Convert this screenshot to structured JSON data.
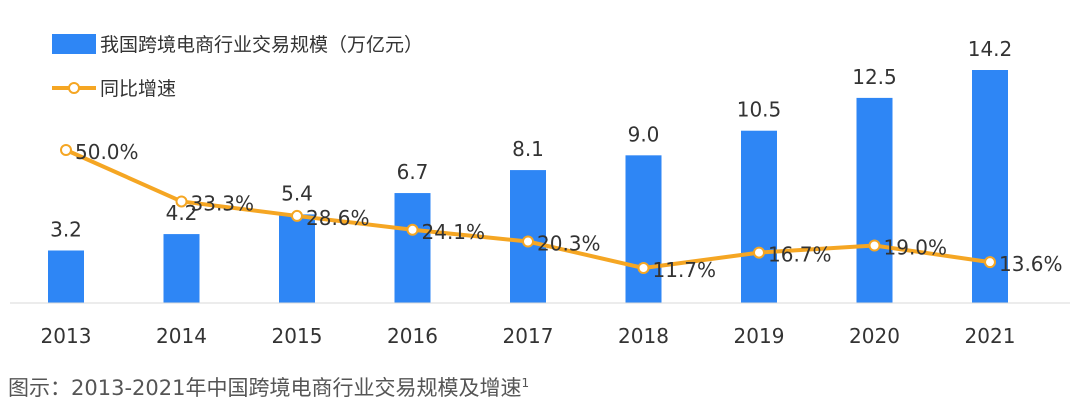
{
  "chart_data": {
    "type": "bar",
    "categories": [
      "2013",
      "2014",
      "2015",
      "2016",
      "2017",
      "2018",
      "2019",
      "2020",
      "2021"
    ],
    "series": [
      {
        "name": "我国跨境电商行业交易规模（万亿元）",
        "type": "bar",
        "values": [
          3.2,
          4.2,
          5.4,
          6.7,
          8.1,
          9.0,
          10.5,
          12.5,
          14.2
        ],
        "labels": [
          "3.2",
          "4.2",
          "5.4",
          "6.7",
          "8.1",
          "9.0",
          "10.5",
          "12.5",
          "14.2"
        ],
        "color": "#2E86F5"
      },
      {
        "name": "同比增速",
        "type": "line",
        "values": [
          50.0,
          33.3,
          28.6,
          24.1,
          20.3,
          11.7,
          16.7,
          19.0,
          13.6
        ],
        "labels": [
          "50.0%",
          "33.3%",
          "28.6%",
          "24.1%",
          "20.3%",
          "11.7%",
          "16.7%",
          "19.0%",
          "13.6%"
        ],
        "color": "#F5A623"
      }
    ],
    "ylim": [
      0,
      18
    ],
    "y2lim": [
      0,
      60
    ],
    "legend_position": "top-left",
    "grid": false
  },
  "caption": {
    "text": "图示：2013-2021年中国跨境电商行业交易规模及增速",
    "footnote": "1"
  }
}
